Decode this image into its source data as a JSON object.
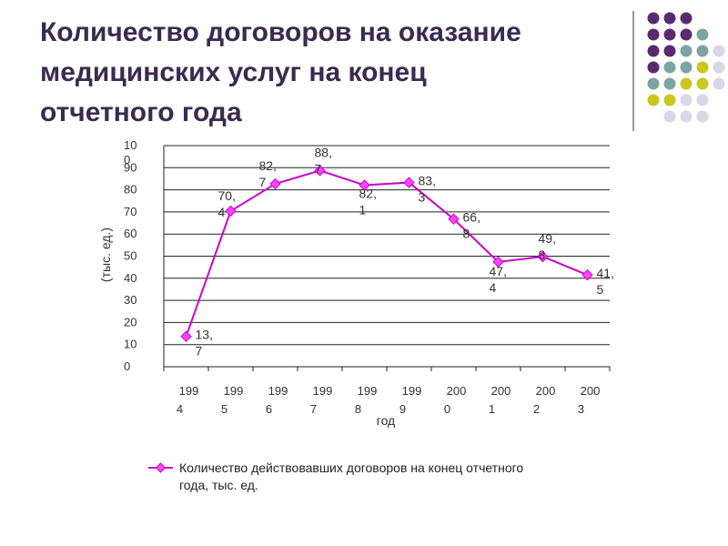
{
  "page": {
    "title_lines": [
      "Количество договоров на оказание",
      "медицинских услуг на конец",
      "отчетного года"
    ]
  },
  "colors": {
    "series": "#cc00cc",
    "marker": "#ff44ff",
    "title": "#3b2a4f",
    "dot_purple": "#5a2a70",
    "dot_teal": "#7fa3a3",
    "dot_yellow": "#c8c81e",
    "dot_lavender": "#d9d6ea"
  },
  "chart_data": {
    "type": "line",
    "title": "",
    "xlabel": "год",
    "ylabel": "(тыс. ед.)",
    "ylim": [
      0,
      100
    ],
    "yticks": [
      "0",
      "10",
      "20",
      "30",
      "40",
      "50",
      "60",
      "70",
      "80",
      "90",
      "100"
    ],
    "categories": [
      "1994",
      "1995",
      "1996",
      "1997",
      "1998",
      "1999",
      "2000",
      "2001",
      "2002",
      "2003"
    ],
    "series": [
      {
        "name": "Количество действовавших договоров на конец отчетного года, тыс. ед.",
        "values": [
          13.7,
          70.4,
          82.7,
          88.7,
          82.1,
          83.3,
          66.8,
          47.4,
          49.8,
          41.5
        ],
        "labels": [
          "13,7",
          "70,4",
          "82,7",
          "88,7",
          "82,1",
          "83,3",
          "66,8",
          "47,4",
          "49,8",
          "41,5"
        ]
      }
    ],
    "grid": true,
    "legend": "bottom"
  }
}
